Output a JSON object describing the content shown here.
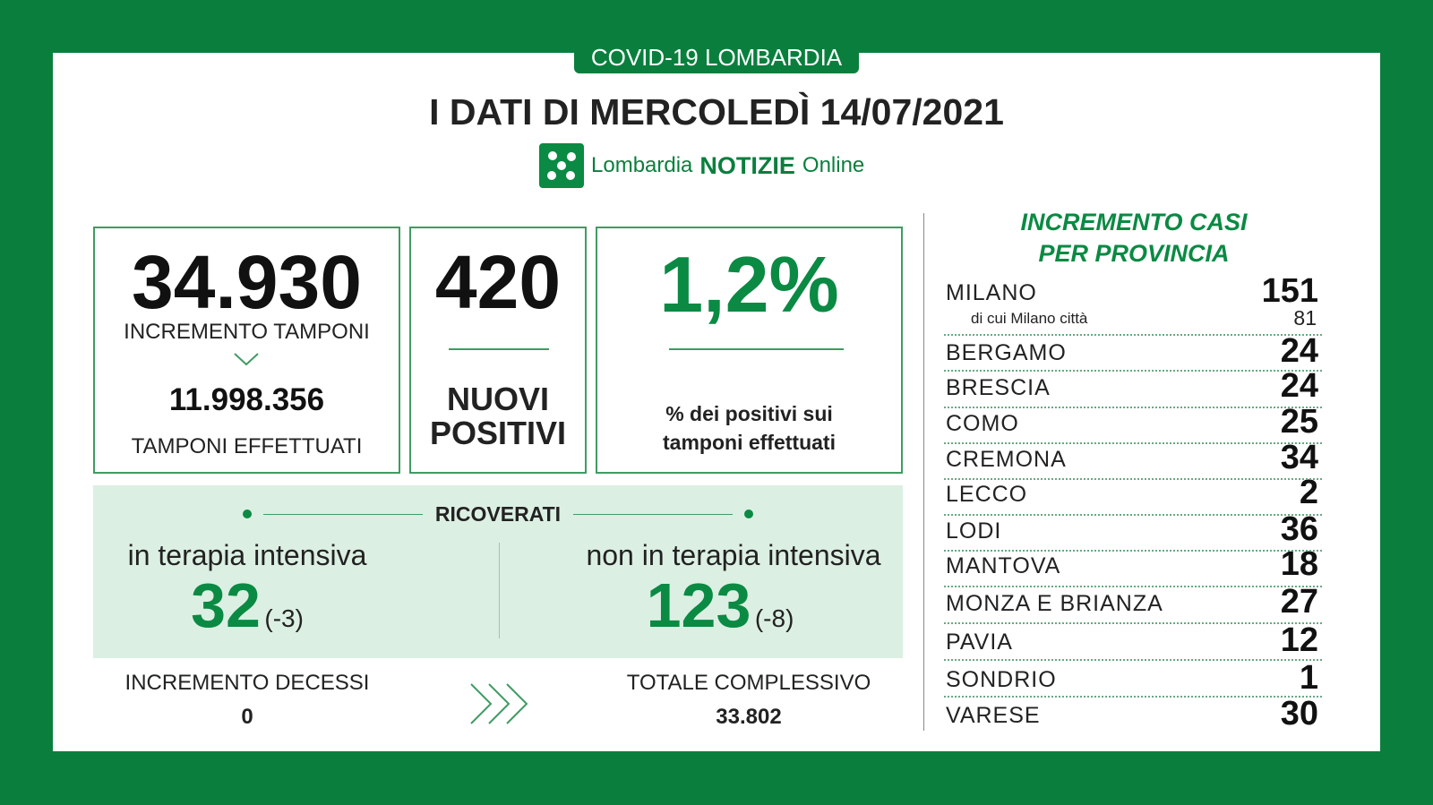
{
  "header": {
    "tag": "COVID-19 LOMBARDIA",
    "title": "I DATI DI MERCOLEDÌ 14/07/2021",
    "logo": {
      "brand": "Lombardia",
      "notizie": "NOTIZIE",
      "online": "Online"
    }
  },
  "tamponi": {
    "value": "34.930",
    "label": "INCREMENTO TAMPONI",
    "total": "11.998.356",
    "total_label": "TAMPONI EFFETTUATI"
  },
  "positivi": {
    "value": "420",
    "label_lines": [
      "NUOVI",
      "POSITIVI"
    ]
  },
  "percentuale": {
    "value": "1,2%",
    "label_lines": [
      "% dei positivi sui",
      "tamponi effettuati"
    ]
  },
  "ricoverati": {
    "title": "RICOVERATI",
    "intensiva": {
      "label": "in terapia intensiva",
      "value": "32",
      "delta": "(-3)"
    },
    "non_intensiva": {
      "label": "non in terapia intensiva",
      "value": "123",
      "delta": "(-8)"
    }
  },
  "decessi": {
    "label": "INCREMENTO DECESSI",
    "value": "0"
  },
  "totale": {
    "label": "TOTALE COMPLESSIVO",
    "value": "33.802"
  },
  "province": {
    "title_lines": [
      "INCREMENTO CASI",
      "PER PROVINCIA"
    ],
    "milano_citta": {
      "label": "di cui Milano città",
      "value": "81"
    },
    "rows": [
      {
        "name": "MILANO",
        "value": "151"
      },
      {
        "name": "BERGAMO",
        "value": "24"
      },
      {
        "name": "BRESCIA",
        "value": "24"
      },
      {
        "name": "COMO",
        "value": "25"
      },
      {
        "name": "CREMONA",
        "value": "34"
      },
      {
        "name": "LECCO",
        "value": "2"
      },
      {
        "name": "LODI",
        "value": "36"
      },
      {
        "name": "MANTOVA",
        "value": "18"
      },
      {
        "name": "MONZA E BRIANZA",
        "value": "27"
      },
      {
        "name": "PAVIA",
        "value": "12"
      },
      {
        "name": "SONDRIO",
        "value": "1"
      },
      {
        "name": "VARESE",
        "value": "30"
      }
    ]
  }
}
